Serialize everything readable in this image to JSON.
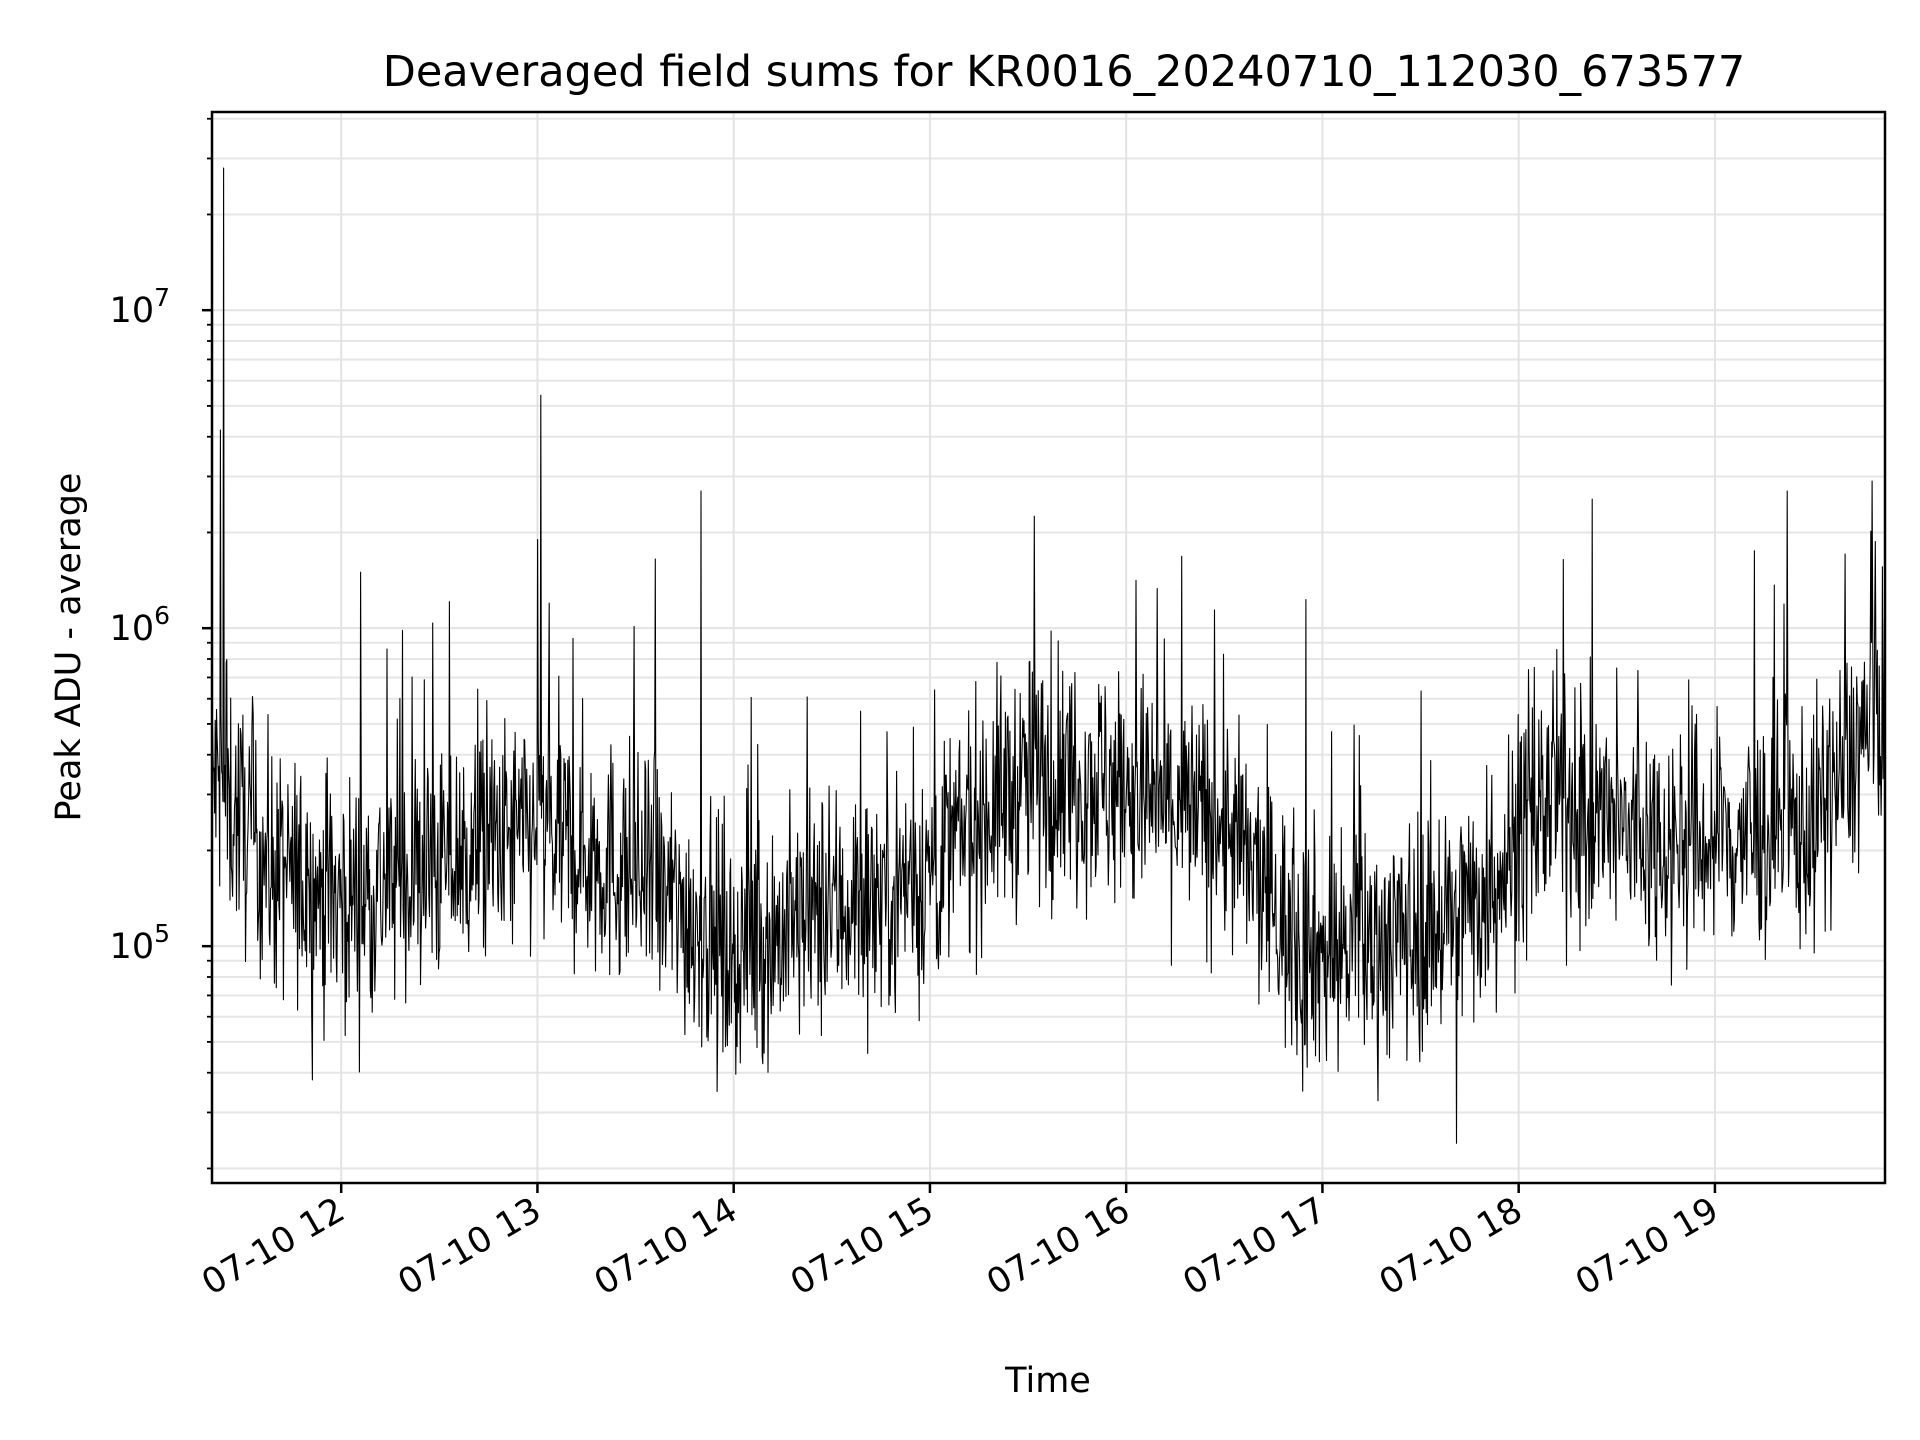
{
  "chart_data": {
    "type": "line",
    "title": "Deaveraged field sums for KR0016_20240710_112030_673577",
    "xlabel": "Time",
    "ylabel": "Peak ADU - average",
    "x_axis": {
      "type": "datetime",
      "range": [
        "2024-07-10 11:20:30",
        "2024-07-10 19:52:00"
      ],
      "tick_labels": [
        "07-10 12",
        "07-10 13",
        "07-10 14",
        "07-10 15",
        "07-10 16",
        "07-10 17",
        "07-10 18",
        "07-10 19"
      ],
      "tick_label_rotation_deg": 30
    },
    "y_axis": {
      "scale": "log",
      "range": [
        18000,
        42000000
      ],
      "major_ticks": [
        {
          "value": 100000,
          "base": "10",
          "exp": "5"
        },
        {
          "value": 1000000,
          "base": "10",
          "exp": "6"
        },
        {
          "value": 10000000,
          "base": "10",
          "exp": "7"
        }
      ]
    },
    "grid": true,
    "legend": "none",
    "colors": {
      "line": "#000000",
      "grid": "#e3e3e3",
      "background": "#ffffff"
    },
    "series": [
      {
        "style": "black line, one point per exposure (thousands of points), noisy",
        "approximate_trend": [
          {
            "time": "2024-07-10 11:20",
            "value": 350000
          },
          {
            "time": "2024-07-10 11:40",
            "value": 170000
          },
          {
            "time": "2024-07-10 12:00",
            "value": 140000
          },
          {
            "time": "2024-07-10 12:30",
            "value": 180000
          },
          {
            "time": "2024-07-10 13:00",
            "value": 230000
          },
          {
            "time": "2024-07-10 13:30",
            "value": 170000
          },
          {
            "time": "2024-07-10 14:00",
            "value": 95000
          },
          {
            "time": "2024-07-10 14:30",
            "value": 130000
          },
          {
            "time": "2024-07-10 15:00",
            "value": 170000
          },
          {
            "time": "2024-07-10 15:15",
            "value": 260000
          },
          {
            "time": "2024-07-10 15:30",
            "value": 330000
          },
          {
            "time": "2024-07-10 15:45",
            "value": 350000
          },
          {
            "time": "2024-07-10 16:00",
            "value": 310000
          },
          {
            "time": "2024-07-10 16:30",
            "value": 240000
          },
          {
            "time": "2024-07-10 16:50",
            "value": 110000
          },
          {
            "time": "2024-07-10 17:00",
            "value": 95000
          },
          {
            "time": "2024-07-10 17:30",
            "value": 110000
          },
          {
            "time": "2024-07-10 17:50",
            "value": 150000
          },
          {
            "time": "2024-07-10 18:10",
            "value": 300000
          },
          {
            "time": "2024-07-10 18:30",
            "value": 230000
          },
          {
            "time": "2024-07-10 19:00",
            "value": 210000
          },
          {
            "time": "2024-07-10 19:30",
            "value": 240000
          },
          {
            "time": "2024-07-10 19:52",
            "value": 600000
          }
        ],
        "notable_spikes": [
          {
            "time": "2024-07-10 11:24",
            "value": 28000000
          },
          {
            "time": "2024-07-10 11:23",
            "value": 4200000
          },
          {
            "time": "2024-07-10 13:01",
            "value": 5400000
          },
          {
            "time": "2024-07-10 13:00",
            "value": 1900000
          },
          {
            "time": "2024-07-10 13:50",
            "value": 2700000
          },
          {
            "time": "2024-07-10 13:36",
            "value": 1650000
          },
          {
            "time": "2024-07-10 12:06",
            "value": 1500000
          },
          {
            "time": "2024-07-10 15:32",
            "value": 2250000
          },
          {
            "time": "2024-07-10 16:55",
            "value": 1230000
          },
          {
            "time": "2024-07-10 19:22",
            "value": 2700000
          },
          {
            "time": "2024-07-10 19:48",
            "value": 2900000
          },
          {
            "time": "2024-07-10 17:41",
            "value": 24000
          },
          {
            "time": "2024-07-10 16:54",
            "value": 35000
          }
        ]
      }
    ]
  }
}
